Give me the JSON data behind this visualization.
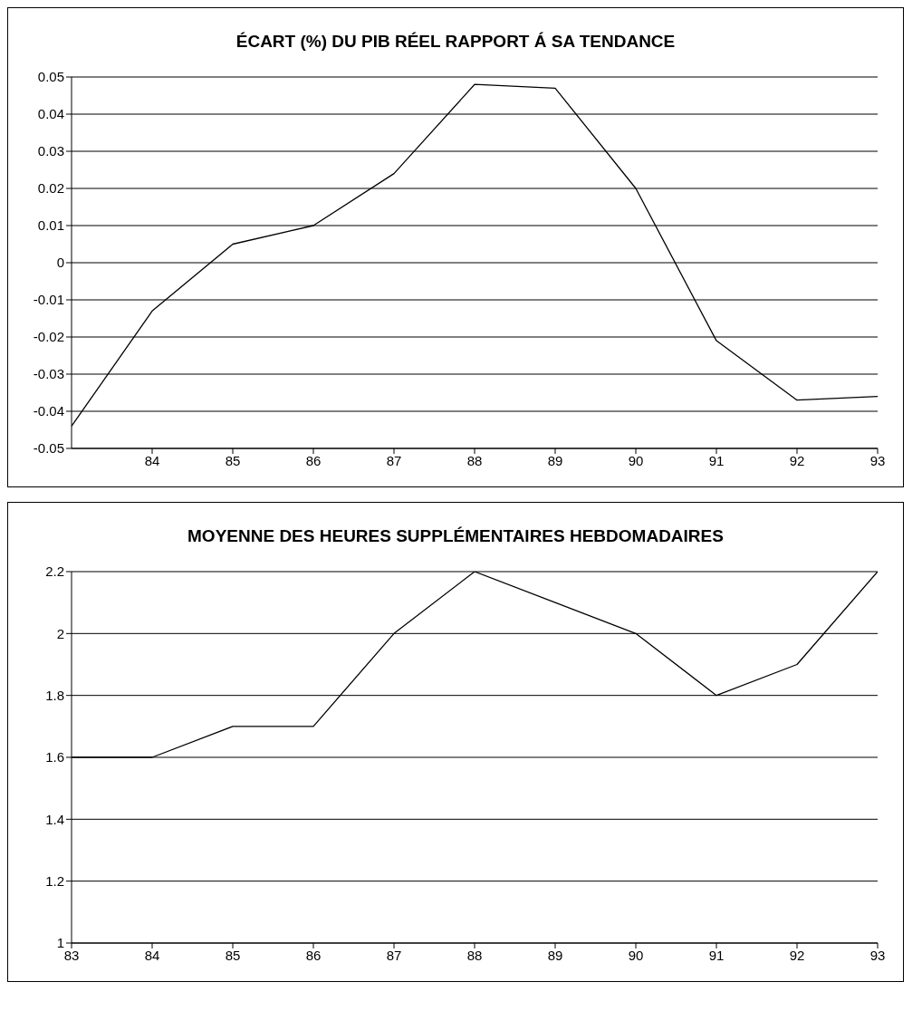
{
  "chart_data": [
    {
      "type": "line",
      "title": "ÉCART (%) DU PIB RÉEL RAPPORT Á SA TENDANCE",
      "x": [
        83,
        84,
        85,
        86,
        87,
        88,
        89,
        90,
        91,
        92,
        93
      ],
      "series": [
        {
          "color": "#000000",
          "values": [
            -0.044,
            -0.013,
            0.005,
            0.01,
            0.024,
            0.048,
            0.047,
            0.02,
            -0.021,
            -0.037,
            -0.036
          ]
        }
      ],
      "xlim": [
        83,
        93
      ],
      "xticks": [
        84,
        85,
        86,
        87,
        88,
        89,
        90,
        91,
        92,
        93
      ],
      "ylim": [
        -0.05,
        0.05
      ],
      "yticks": [
        -0.05,
        -0.04,
        -0.03,
        -0.02,
        -0.01,
        0,
        0.01,
        0.02,
        0.03,
        0.04,
        0.05
      ],
      "grid": "y"
    },
    {
      "type": "line",
      "title": "MOYENNE DES HEURES SUPPLÉMENTAIRES HEBDOMADAIRES",
      "x": [
        83,
        84,
        85,
        86,
        87,
        88,
        89,
        90,
        91,
        92,
        93
      ],
      "series": [
        {
          "color": "#000000",
          "values": [
            1.6,
            1.6,
            1.7,
            1.7,
            2.0,
            2.2,
            2.1,
            2.0,
            1.8,
            1.9,
            2.2
          ]
        }
      ],
      "xlim": [
        83,
        93
      ],
      "xticks": [
        83,
        84,
        85,
        86,
        87,
        88,
        89,
        90,
        91,
        92,
        93
      ],
      "ylim": [
        1,
        2.2
      ],
      "yticks": [
        1,
        1.2,
        1.4,
        1.6,
        1.8,
        2,
        2.2
      ],
      "grid": "y"
    }
  ]
}
